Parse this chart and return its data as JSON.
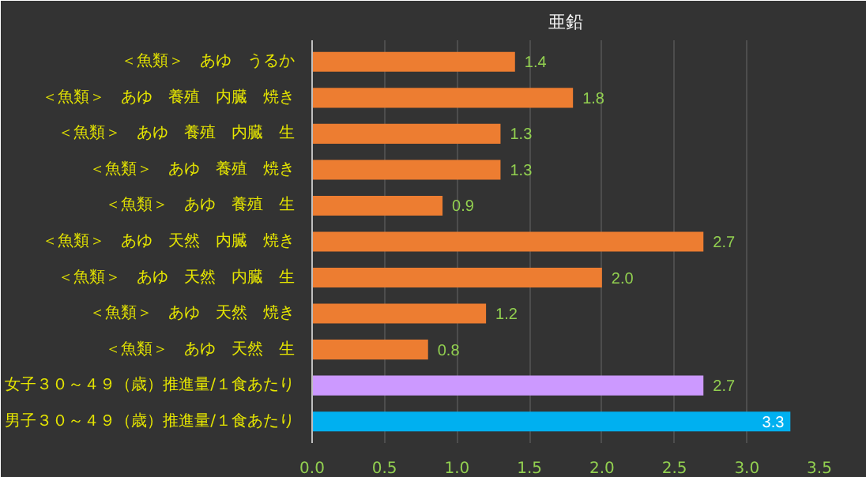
{
  "chart_data": {
    "type": "bar",
    "orientation": "horizontal",
    "title": "亜鉛",
    "categories": [
      "＜魚類＞　あゆ　うるか",
      "＜魚類＞　あゆ　養殖　内臓　焼き",
      "＜魚類＞　あゆ　養殖　内臓　生",
      "＜魚類＞　あゆ　養殖　焼き",
      "＜魚類＞　あゆ　養殖　生",
      "＜魚類＞　あゆ　天然　内臓　焼き",
      "＜魚類＞　あゆ　天然　内臓　生",
      "＜魚類＞　あゆ　天然　焼き",
      "＜魚類＞　あゆ　天然　生",
      "女子３０～４９（歳）推進量/１食あたり",
      "男子３０～４９（歳）推進量/１食あたり"
    ],
    "values": [
      1.4,
      1.8,
      1.3,
      1.3,
      0.9,
      2.7,
      2.0,
      1.2,
      0.8,
      2.7,
      3.3
    ],
    "value_labels": [
      "1.4",
      "1.8",
      "1.3",
      "1.3",
      "0.9",
      "2.7",
      "2.0",
      "1.2",
      "0.8",
      "2.7",
      "3.3"
    ],
    "colors": [
      "#ed7d31",
      "#ed7d31",
      "#ed7d31",
      "#ed7d31",
      "#ed7d31",
      "#ed7d31",
      "#ed7d31",
      "#ed7d31",
      "#ed7d31",
      "#cc99ff",
      "#00b0f0"
    ],
    "xlim": [
      0,
      3.5
    ],
    "xticks": [
      {
        "value": 0,
        "label": "0.0"
      },
      {
        "value": 0.5,
        "label": "0.5"
      },
      {
        "value": 1,
        "label": "1.0"
      },
      {
        "value": 1.5,
        "label": "1.5"
      },
      {
        "value": 2,
        "label": "2.0"
      },
      {
        "value": 2.5,
        "label": "2.5"
      },
      {
        "value": 3,
        "label": "3.0"
      },
      {
        "value": 3.5,
        "label": "3.5"
      }
    ],
    "grid": "x"
  }
}
